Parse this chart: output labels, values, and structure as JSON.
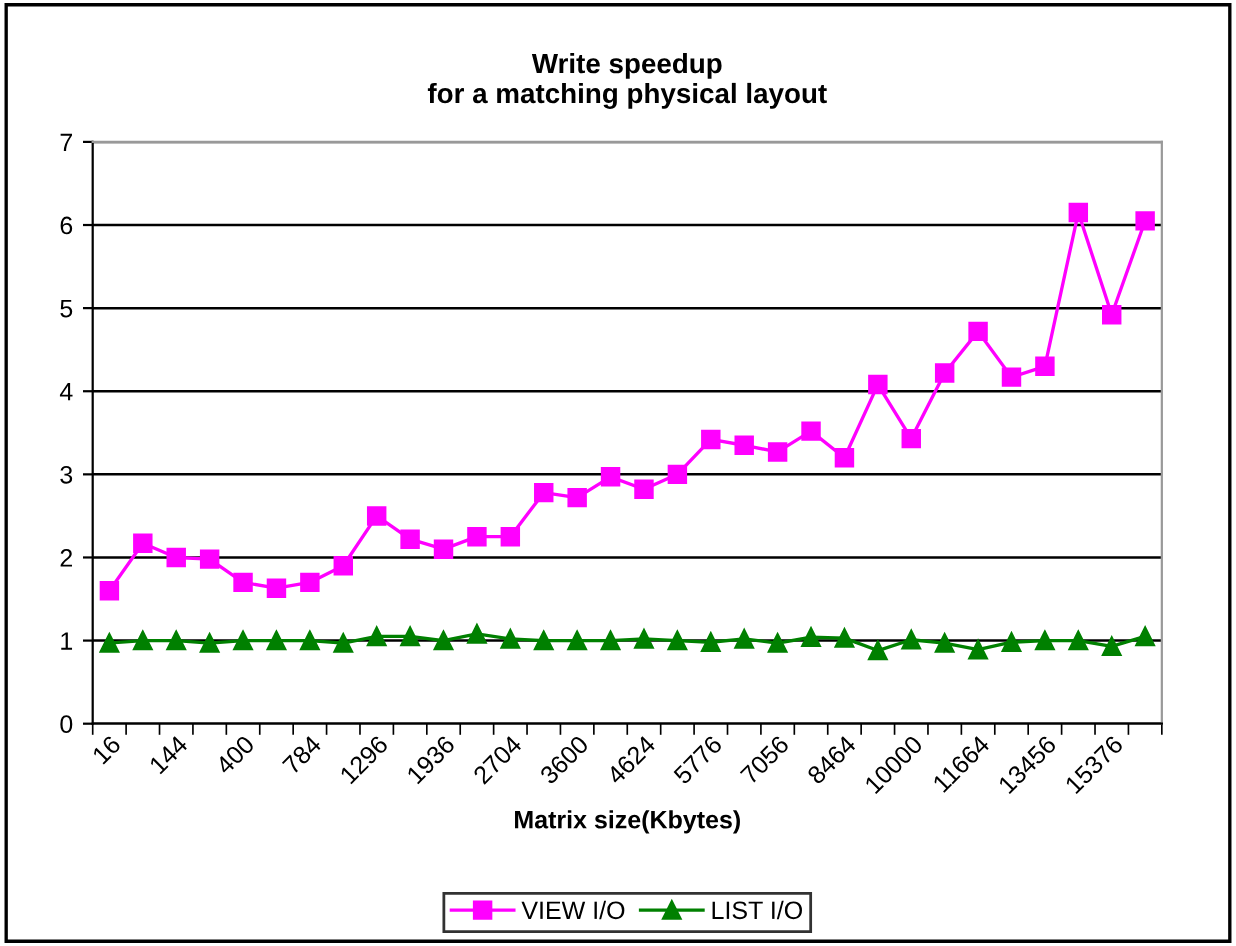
{
  "chart_data": {
    "type": "line",
    "title": "Write speedup\nfor a matching physical layout",
    "xlabel": "Matrix size(Kbytes)",
    "categories": [
      "16",
      null,
      "144",
      null,
      "400",
      null,
      "784",
      null,
      "1296",
      null,
      "1936",
      null,
      "2704",
      null,
      "3600",
      null,
      "4624",
      null,
      "5776",
      null,
      "7056",
      null,
      "8464",
      null,
      "10000",
      null,
      "11664",
      null,
      "13456",
      null,
      "15376",
      null
    ],
    "series": [
      {
        "name": "VIEW I/O",
        "color": "#ff00ff",
        "marker": "square",
        "values": [
          1.6,
          2.17,
          2.0,
          1.98,
          1.7,
          1.63,
          1.7,
          1.9,
          2.5,
          2.22,
          2.1,
          2.25,
          2.25,
          2.78,
          2.72,
          2.97,
          2.82,
          3.0,
          3.42,
          3.35,
          3.27,
          3.52,
          3.2,
          4.08,
          3.43,
          4.22,
          4.72,
          4.17,
          4.3,
          6.15,
          4.92,
          6.05
        ]
      },
      {
        "name": "LIST I/O",
        "color": "#008000",
        "marker": "triangle",
        "values": [
          0.97,
          1.0,
          1.0,
          0.97,
          1.0,
          1.0,
          1.0,
          0.97,
          1.05,
          1.05,
          1.0,
          1.08,
          1.02,
          1.0,
          1.0,
          1.0,
          1.02,
          1.0,
          0.98,
          1.02,
          0.97,
          1.04,
          1.03,
          0.88,
          1.01,
          0.97,
          0.89,
          0.98,
          1.0,
          1.0,
          0.93,
          1.05
        ]
      }
    ],
    "ylim": [
      0,
      7
    ],
    "yticks": [
      0,
      1,
      2,
      3,
      4,
      5,
      6,
      7
    ],
    "grid": "y",
    "legend": "bottom"
  }
}
